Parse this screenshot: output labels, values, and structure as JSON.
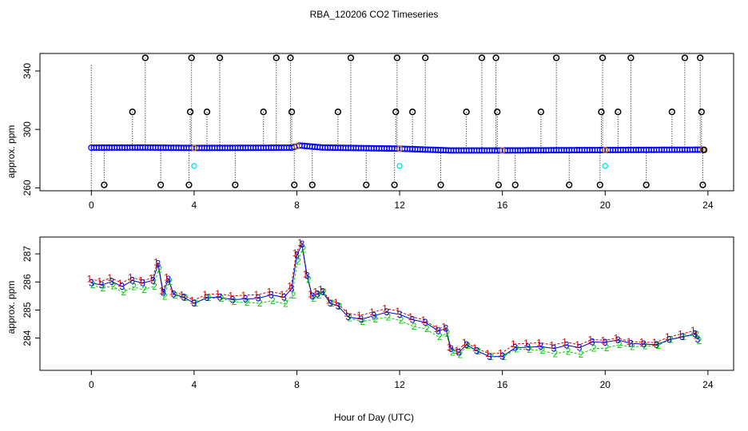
{
  "title": "RBA_120206  CO2 Timeseries",
  "xlabel": "Hour of Day (UTC)",
  "chart_data": [
    {
      "type": "scatter",
      "ylabel": "approx. ppm",
      "xlim": [
        -2,
        25
      ],
      "ylim": [
        258,
        352
      ],
      "xticks": [
        0,
        4,
        8,
        12,
        16,
        20,
        24
      ],
      "yticks": [
        260,
        300,
        340
      ],
      "colors": {
        "main": "#0000ff",
        "cal": "#00e5ee",
        "spike": "#000000",
        "baseline": "#cc7a00"
      },
      "baseline_series": [
        {
          "x": 0,
          "y": 287.5
        },
        {
          "x": 2,
          "y": 287.6
        },
        {
          "x": 4,
          "y": 287.3
        },
        {
          "x": 6,
          "y": 287.4
        },
        {
          "x": 7.8,
          "y": 287.5
        },
        {
          "x": 8.1,
          "y": 289.0
        },
        {
          "x": 9,
          "y": 287.6
        },
        {
          "x": 12,
          "y": 286.8
        },
        {
          "x": 14,
          "y": 285.6
        },
        {
          "x": 16,
          "y": 285.6
        },
        {
          "x": 20,
          "y": 285.9
        },
        {
          "x": 23.8,
          "y": 286.1
        }
      ],
      "spikes": [
        {
          "x": 0.5,
          "y": 262
        },
        {
          "x": 1.6,
          "y": 312
        },
        {
          "x": 2.1,
          "y": 349
        },
        {
          "x": 2.7,
          "y": 262
        },
        {
          "x": 3.8,
          "y": 262
        },
        {
          "x": 3.85,
          "y": 312
        },
        {
          "x": 3.9,
          "y": 349
        },
        {
          "x": 4.5,
          "y": 312
        },
        {
          "x": 5.0,
          "y": 349
        },
        {
          "x": 5.6,
          "y": 262
        },
        {
          "x": 6.7,
          "y": 312
        },
        {
          "x": 7.2,
          "y": 349
        },
        {
          "x": 7.75,
          "y": 349
        },
        {
          "x": 7.8,
          "y": 312
        },
        {
          "x": 7.9,
          "y": 262
        },
        {
          "x": 8.6,
          "y": 262
        },
        {
          "x": 9.6,
          "y": 312
        },
        {
          "x": 10.1,
          "y": 349
        },
        {
          "x": 10.7,
          "y": 262
        },
        {
          "x": 11.8,
          "y": 262
        },
        {
          "x": 11.85,
          "y": 312
        },
        {
          "x": 11.9,
          "y": 349
        },
        {
          "x": 12.5,
          "y": 312
        },
        {
          "x": 13.0,
          "y": 349
        },
        {
          "x": 13.6,
          "y": 262
        },
        {
          "x": 14.6,
          "y": 312
        },
        {
          "x": 15.2,
          "y": 349
        },
        {
          "x": 15.75,
          "y": 349
        },
        {
          "x": 15.8,
          "y": 312
        },
        {
          "x": 15.85,
          "y": 262
        },
        {
          "x": 16.5,
          "y": 262
        },
        {
          "x": 17.5,
          "y": 312
        },
        {
          "x": 18.1,
          "y": 349
        },
        {
          "x": 18.6,
          "y": 262
        },
        {
          "x": 19.8,
          "y": 262
        },
        {
          "x": 19.85,
          "y": 312
        },
        {
          "x": 19.9,
          "y": 349
        },
        {
          "x": 20.5,
          "y": 312
        },
        {
          "x": 21.0,
          "y": 349
        },
        {
          "x": 21.6,
          "y": 262
        },
        {
          "x": 22.6,
          "y": 312
        },
        {
          "x": 23.1,
          "y": 349
        },
        {
          "x": 23.7,
          "y": 349
        },
        {
          "x": 23.75,
          "y": 312
        },
        {
          "x": 23.8,
          "y": 262
        },
        {
          "x": 23.85,
          "y": 286
        }
      ],
      "cal_points": [
        {
          "x": 4.0,
          "y": 275
        },
        {
          "x": 12.0,
          "y": 275
        },
        {
          "x": 20.0,
          "y": 275
        }
      ]
    },
    {
      "type": "scatter",
      "ylabel": "approx. ppm",
      "xlim": [
        -2,
        25
      ],
      "ylim": [
        282.85,
        287.6
      ],
      "xticks": [
        0,
        4,
        8,
        12,
        16,
        20,
        24
      ],
      "yticks": [
        284,
        285,
        286,
        287
      ],
      "series": [
        {
          "marker": "1",
          "color": "#dd0000"
        },
        {
          "marker": "2",
          "color": "#00cc00"
        },
        {
          "marker": "3",
          "color": "#0000cc"
        }
      ],
      "x": [
        0,
        0.4,
        0.8,
        1.2,
        1.6,
        2.0,
        2.4,
        2.6,
        2.8,
        3.0,
        3.2,
        3.6,
        4.0,
        4.5,
        5.0,
        5.5,
        6.0,
        6.5,
        7.0,
        7.5,
        7.8,
        8.0,
        8.2,
        8.4,
        8.6,
        8.8,
        9.0,
        9.3,
        9.6,
        10.0,
        10.5,
        11.0,
        11.5,
        12.0,
        12.5,
        13.0,
        13.5,
        13.8,
        14.0,
        14.3,
        14.6,
        15.0,
        15.5,
        16.0,
        16.5,
        17.0,
        17.5,
        18.0,
        18.5,
        19.0,
        19.5,
        20.0,
        20.5,
        21.0,
        21.5,
        22.0,
        22.5,
        23.0,
        23.5,
        23.6
      ],
      "values": [
        286.0,
        285.9,
        286.0,
        285.8,
        286.0,
        285.9,
        286.0,
        286.6,
        285.6,
        286.1,
        285.6,
        285.5,
        285.3,
        285.5,
        285.5,
        285.4,
        285.4,
        285.4,
        285.5,
        285.4,
        285.7,
        286.9,
        287.3,
        286.2,
        285.5,
        285.6,
        285.7,
        285.3,
        285.2,
        284.8,
        284.7,
        284.8,
        284.9,
        284.8,
        284.6,
        284.5,
        284.2,
        284.3,
        283.6,
        283.5,
        283.8,
        283.6,
        283.4,
        283.4,
        283.7,
        283.7,
        283.7,
        283.6,
        283.7,
        283.6,
        283.8,
        283.8,
        283.9,
        283.8,
        283.8,
        283.8,
        284.0,
        284.1,
        284.2,
        284.0
      ]
    }
  ]
}
